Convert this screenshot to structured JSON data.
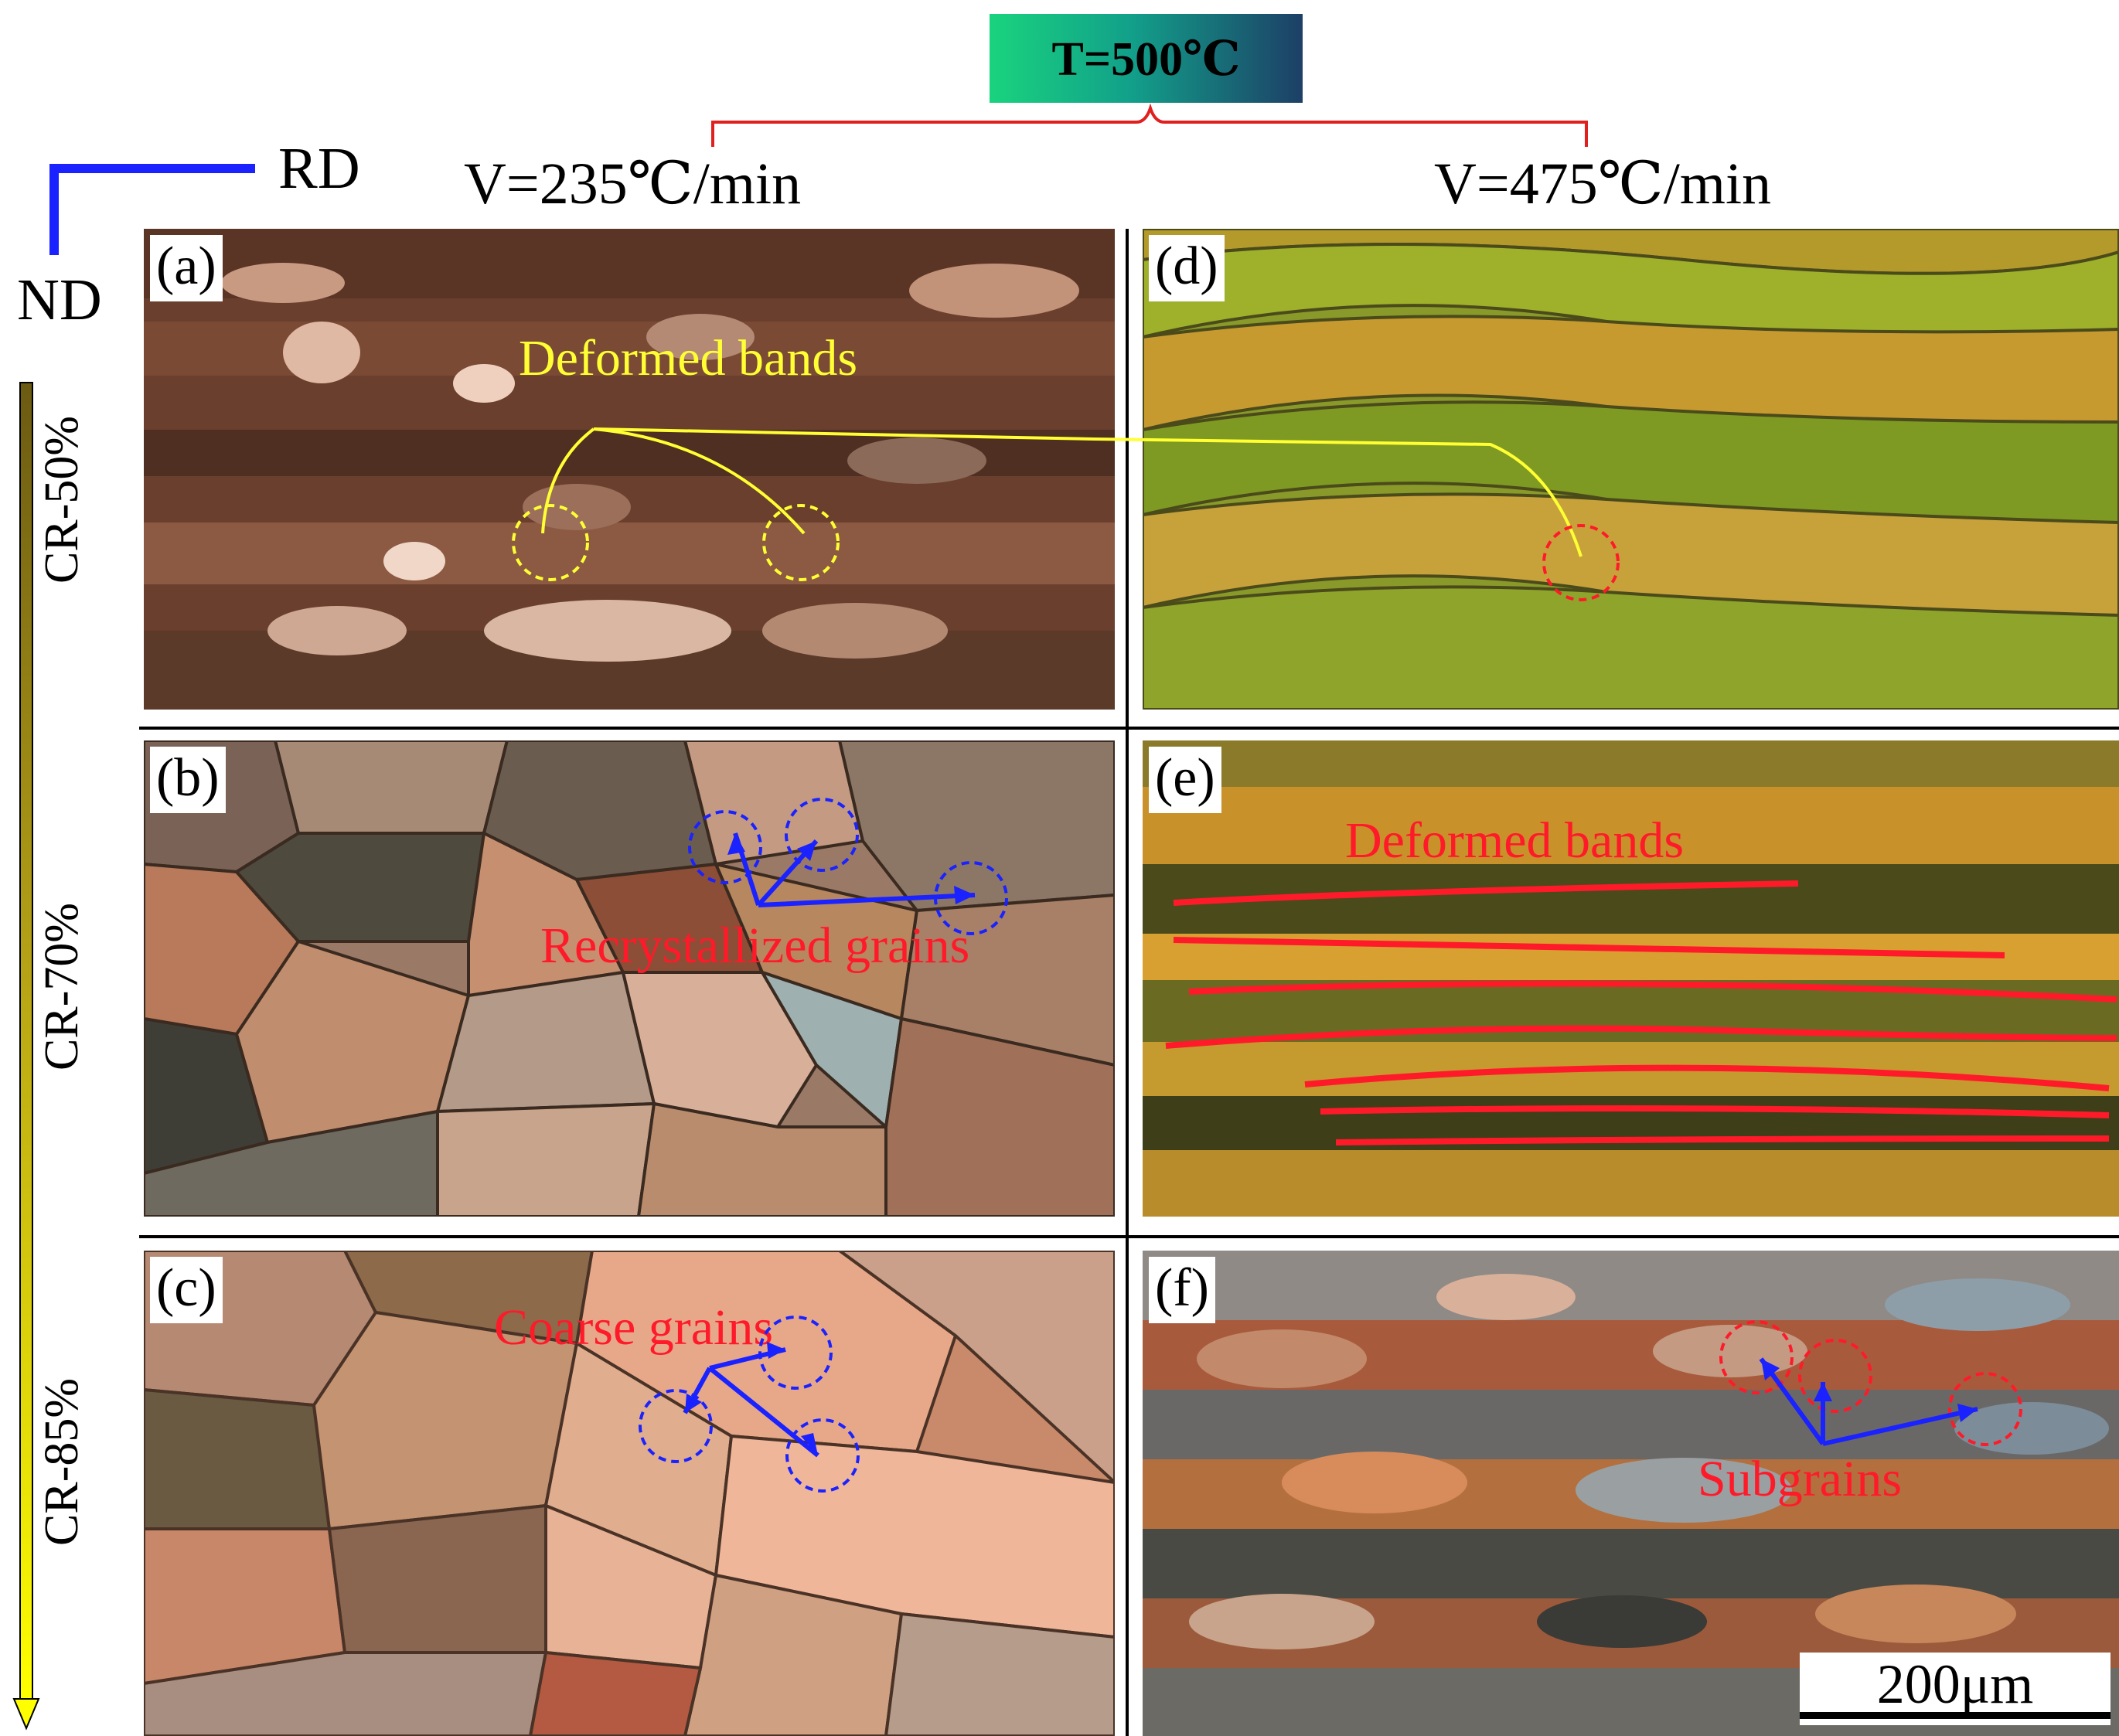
{
  "header": {
    "temperature": "T=500℃",
    "rate_left": "V=235℃/min",
    "rate_right": "V=475℃/min"
  },
  "axes": {
    "rd": "RD",
    "nd": "ND"
  },
  "rows": [
    {
      "label": "CR-50%"
    },
    {
      "label": "CR-70%"
    },
    {
      "label": "CR-85%"
    }
  ],
  "panels": {
    "a": {
      "label": "(a)",
      "annotation": "Deformed bands"
    },
    "b": {
      "label": "(b)",
      "annotation": "Recrystallized grains"
    },
    "c": {
      "label": "(c)",
      "annotation": "Coarse grains"
    },
    "d": {
      "label": "(d)",
      "annotation": ""
    },
    "e": {
      "label": "(e)",
      "annotation": "Deformed bands"
    },
    "f": {
      "label": "(f)",
      "annotation": "Subgrains"
    }
  },
  "scale_bar": "200μm",
  "colors": {
    "yellow_annotation": "#ffff33",
    "red_annotation": "#ff1a2a",
    "blue_arrow": "#1a22ff",
    "rd_nd_axis": "#1a22ff"
  }
}
